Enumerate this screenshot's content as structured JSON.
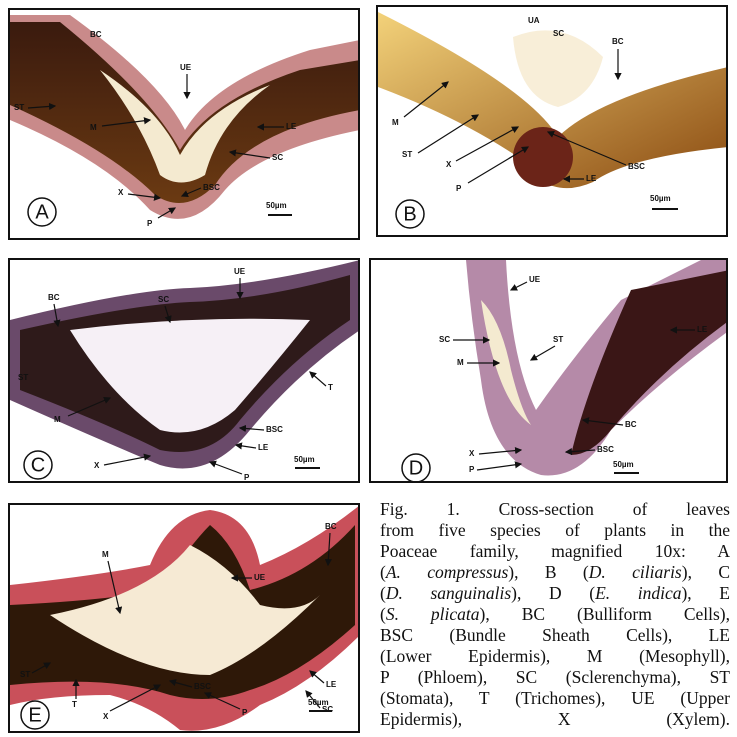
{
  "panels": [
    {
      "letter": "A",
      "scale": "50µm",
      "labels": [
        "BC",
        "UE",
        "ST",
        "M",
        "LE",
        "SC",
        "X",
        "BSC",
        "P"
      ]
    },
    {
      "letter": "B",
      "scale": "50µm",
      "labels": [
        "UA",
        "SC",
        "BC",
        "M",
        "ST",
        "X",
        "BSC",
        "P",
        "LE"
      ]
    },
    {
      "letter": "C",
      "scale": "50µm",
      "labels": [
        "BC",
        "SC",
        "UE",
        "ST",
        "T",
        "M",
        "BSC",
        "LE",
        "X",
        "P"
      ]
    },
    {
      "letter": "D",
      "scale": "50µm",
      "labels": [
        "UE",
        "SC",
        "ST",
        "M",
        "LE",
        "BC",
        "X",
        "BSC",
        "P"
      ]
    },
    {
      "letter": "E",
      "scale": "50µm",
      "labels": [
        "M",
        "BC",
        "UE",
        "ST",
        "LE",
        "SC",
        "T",
        "BSC",
        "X",
        "P"
      ]
    }
  ],
  "caption": [
    [
      "Fig. 1. Cross-section of leaves"
    ],
    [
      "from five species of plants in the"
    ],
    [
      "Poaceae family, magnified 10x: A"
    ],
    [
      "(",
      "A. compressus",
      "), B (",
      "D. ciliaris",
      "), C"
    ],
    [
      "(",
      "D. sanguinalis",
      "), D (",
      "E. indica",
      "), E"
    ],
    [
      "(",
      "S. plicata",
      "), BC (Bulliform Cells),"
    ],
    [
      "BSC (Bundle Sheath Cells), LE"
    ],
    [
      "(Lower Epidermis), M (Mesophyll),"
    ],
    [
      "P (Phloem), SC (Sclerenchyma), ST"
    ],
    [
      "(Stomata), T (Trichomes), UE (Upper"
    ],
    [
      "Epidermis), X (Xylem)."
    ]
  ]
}
